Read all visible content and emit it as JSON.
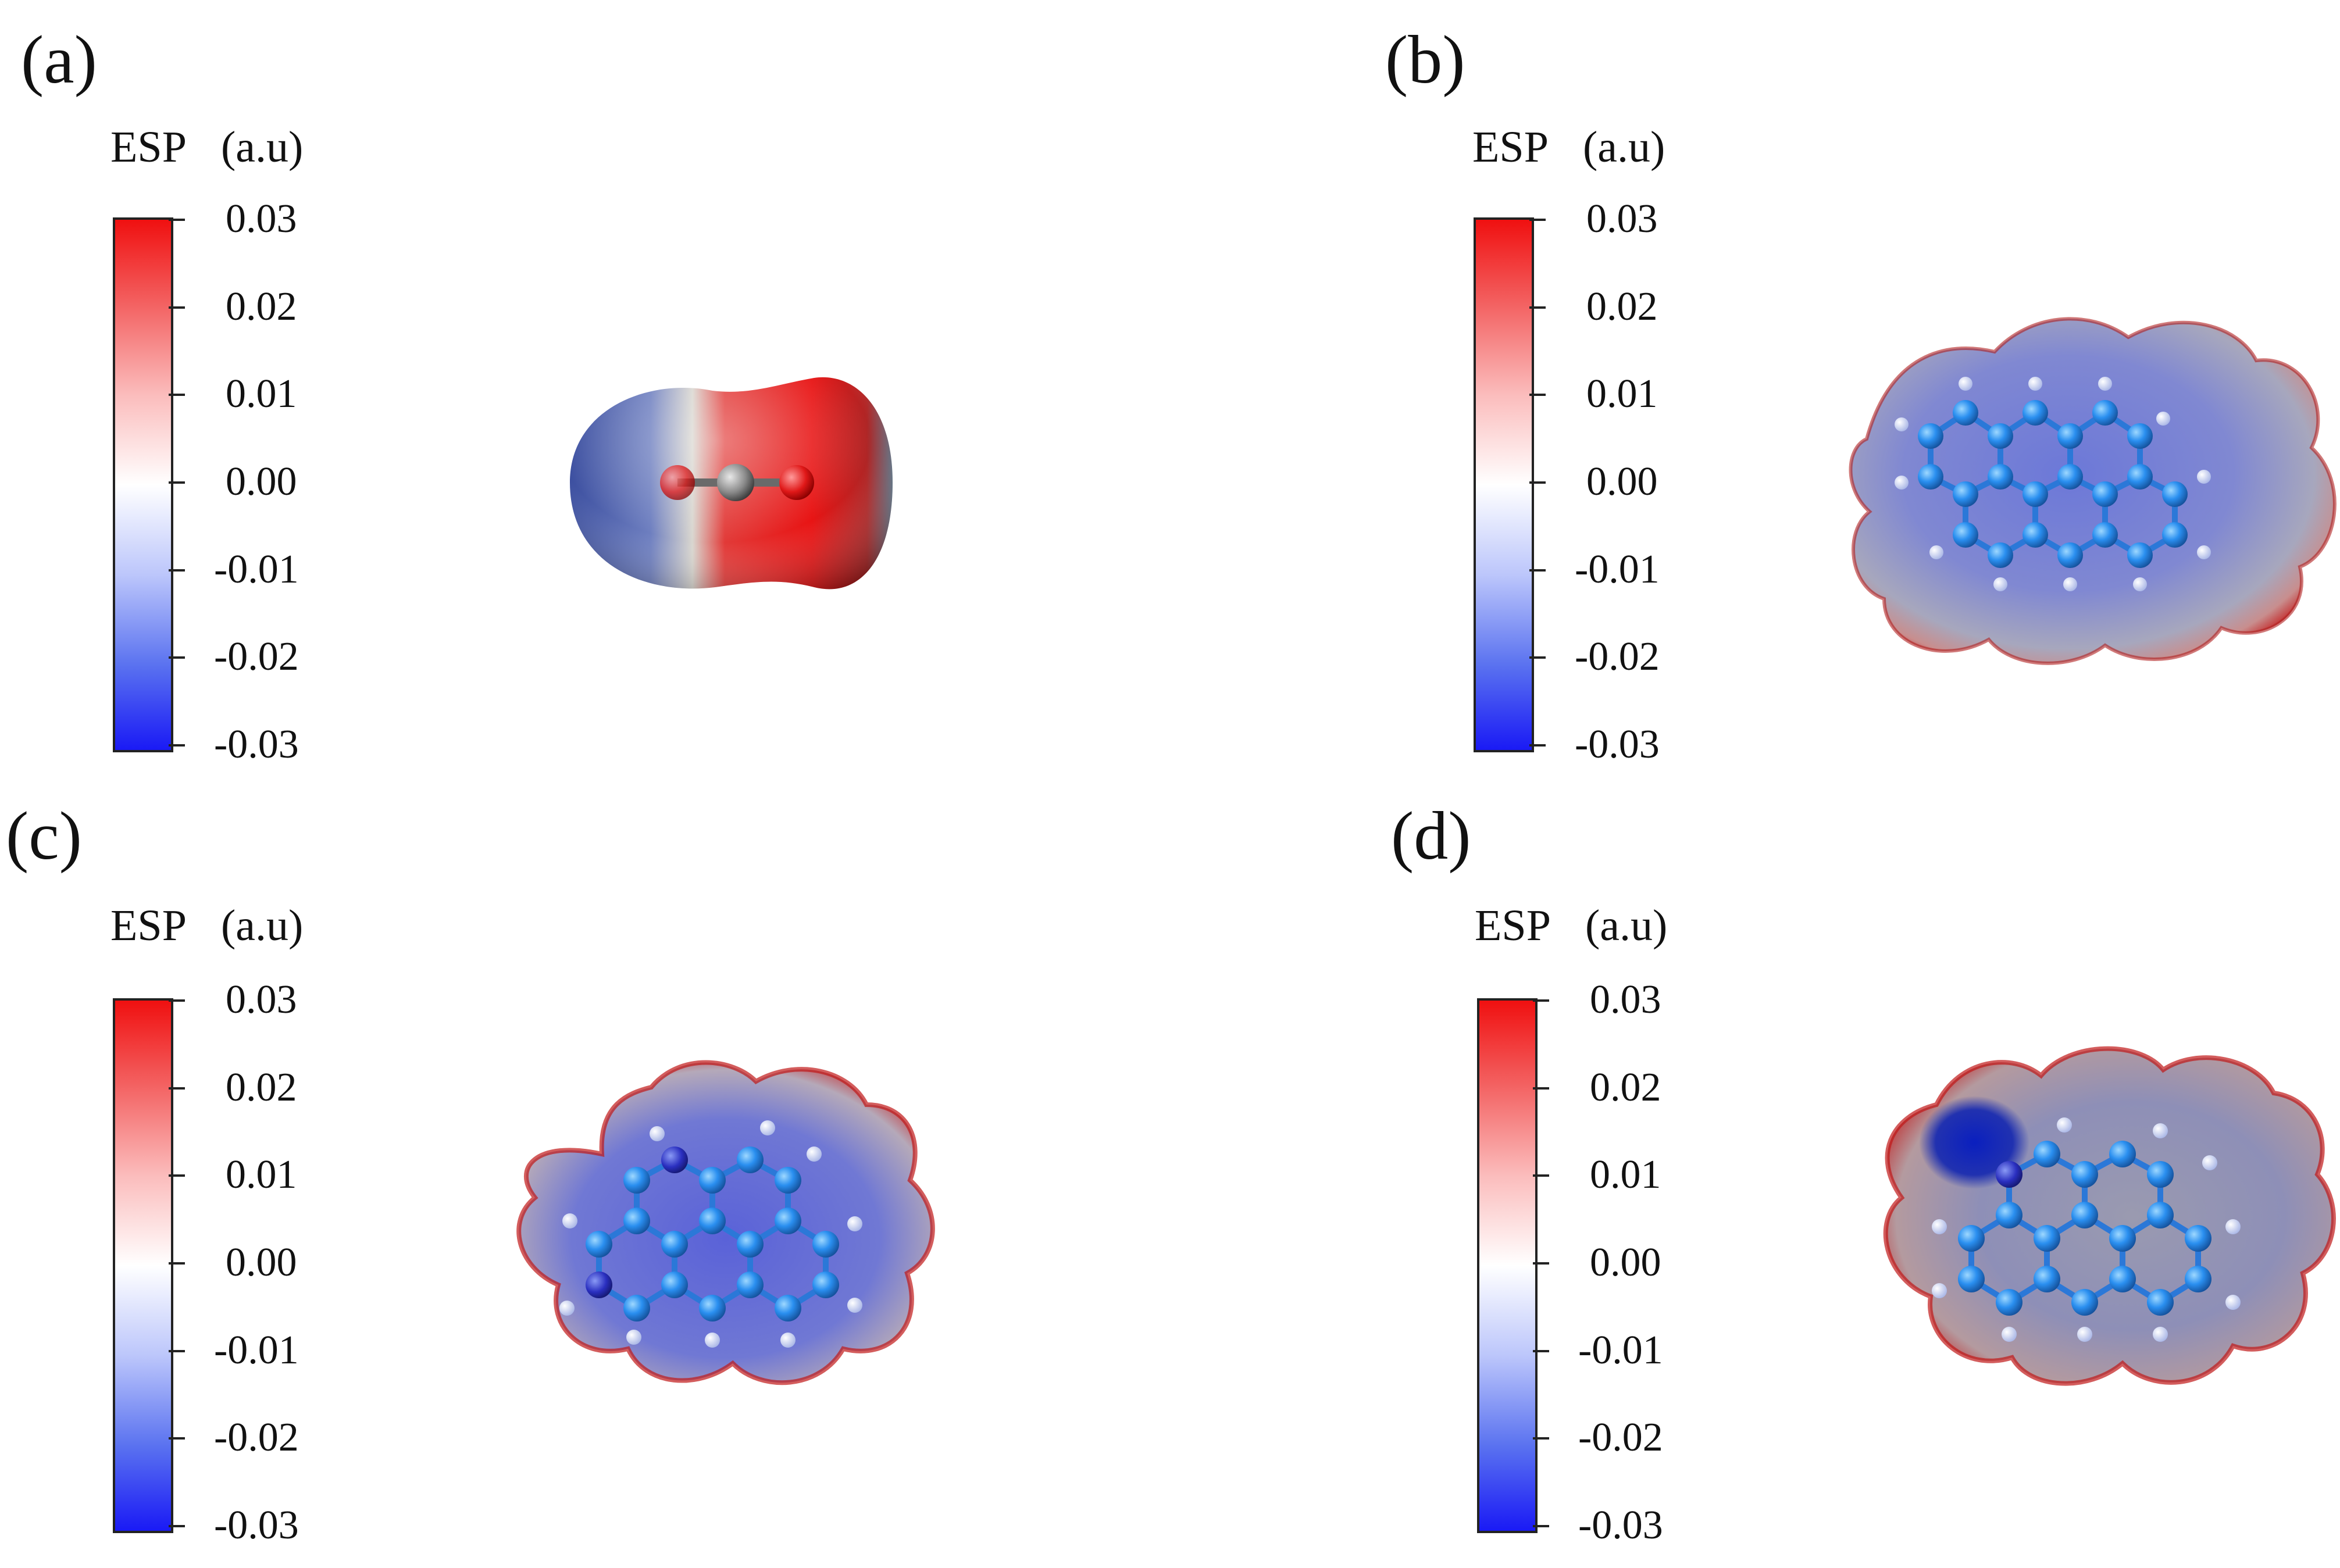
{
  "panels": [
    {
      "label": "(a)",
      "esp_label": "ESP",
      "unit_label": "(a.u)"
    },
    {
      "label": "(b)",
      "esp_label": "ESP",
      "unit_label": "(a.u)"
    },
    {
      "label": "(c)",
      "esp_label": "ESP",
      "unit_label": "(a.u)"
    },
    {
      "label": "(d)",
      "esp_label": "ESP",
      "unit_label": "(a.u)"
    }
  ],
  "colorbar": {
    "ticks": [
      "0.03",
      "0.02",
      "0.01",
      "0.00",
      "-0.01",
      "-0.02",
      "-0.03"
    ],
    "max_color": "#f01010",
    "zero_color": "#ffffff",
    "min_color": "#1a1af5"
  }
}
